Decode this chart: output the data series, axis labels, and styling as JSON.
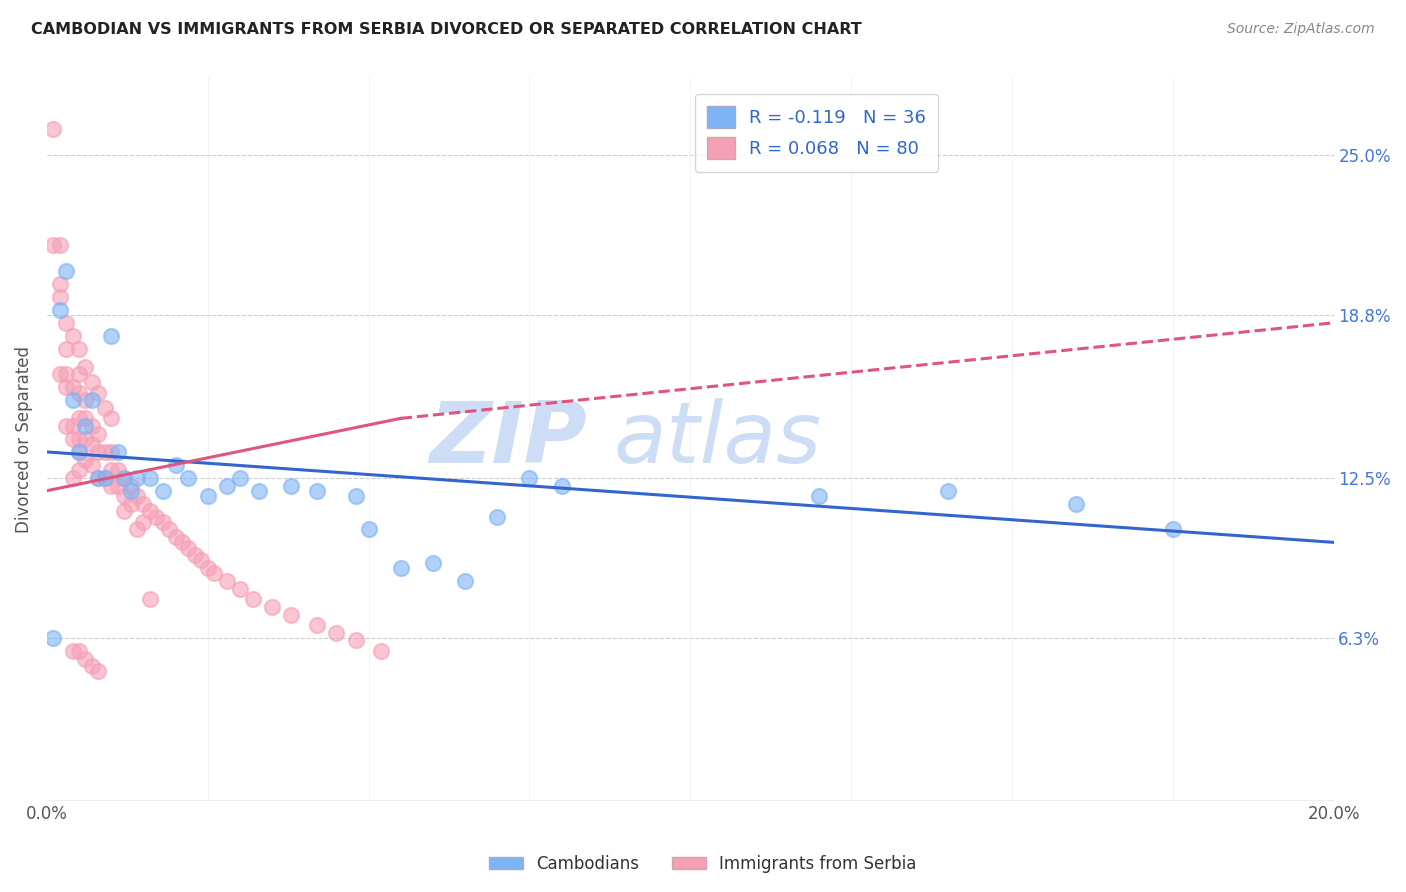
{
  "title": "CAMBODIAN VS IMMIGRANTS FROM SERBIA DIVORCED OR SEPARATED CORRELATION CHART",
  "source": "Source: ZipAtlas.com",
  "ylabel_label": "Divorced or Separated",
  "xlim": [
    0.0,
    0.2
  ],
  "ylim": [
    0.0,
    0.28
  ],
  "ytick_positions": [
    0.063,
    0.125,
    0.188,
    0.25
  ],
  "ytick_labels": [
    "6.3%",
    "12.5%",
    "18.8%",
    "25.0%"
  ],
  "xtick_positions": [
    0.0,
    0.2
  ],
  "xtick_labels": [
    "0.0%",
    "20.0%"
  ],
  "cambodian_color": "#7eb3f5",
  "serbia_color": "#f5a0b5",
  "trend_cambodian_color": "#3366cc",
  "trend_serbia_color": "#e05580",
  "watermark_color": "#ccddf5",
  "R_cambodian": -0.119,
  "N_cambodian": 36,
  "R_serbia": 0.068,
  "N_serbia": 80,
  "cambodian_x": [
    0.001,
    0.002,
    0.003,
    0.004,
    0.005,
    0.006,
    0.007,
    0.008,
    0.009,
    0.01,
    0.011,
    0.012,
    0.013,
    0.014,
    0.016,
    0.018,
    0.02,
    0.022,
    0.025,
    0.028,
    0.03,
    0.033,
    0.038,
    0.042,
    0.048,
    0.05,
    0.055,
    0.06,
    0.065,
    0.07,
    0.075,
    0.08,
    0.12,
    0.14,
    0.16,
    0.175
  ],
  "cambodian_y": [
    0.063,
    0.19,
    0.205,
    0.155,
    0.135,
    0.145,
    0.155,
    0.125,
    0.125,
    0.18,
    0.135,
    0.125,
    0.12,
    0.125,
    0.125,
    0.12,
    0.13,
    0.125,
    0.118,
    0.122,
    0.125,
    0.12,
    0.122,
    0.12,
    0.118,
    0.105,
    0.09,
    0.092,
    0.085,
    0.11,
    0.125,
    0.122,
    0.118,
    0.12,
    0.115,
    0.105
  ],
  "serbia_x": [
    0.001,
    0.001,
    0.002,
    0.002,
    0.002,
    0.003,
    0.003,
    0.003,
    0.003,
    0.004,
    0.004,
    0.004,
    0.004,
    0.005,
    0.005,
    0.005,
    0.005,
    0.005,
    0.005,
    0.006,
    0.006,
    0.006,
    0.006,
    0.007,
    0.007,
    0.007,
    0.008,
    0.008,
    0.008,
    0.009,
    0.009,
    0.01,
    0.01,
    0.01,
    0.011,
    0.011,
    0.012,
    0.012,
    0.013,
    0.013,
    0.014,
    0.015,
    0.015,
    0.016,
    0.017,
    0.018,
    0.019,
    0.02,
    0.021,
    0.022,
    0.023,
    0.024,
    0.025,
    0.026,
    0.028,
    0.03,
    0.032,
    0.035,
    0.038,
    0.042,
    0.045,
    0.048,
    0.052,
    0.002,
    0.003,
    0.004,
    0.005,
    0.006,
    0.007,
    0.008,
    0.009,
    0.01,
    0.012,
    0.014,
    0.016,
    0.004,
    0.005,
    0.006,
    0.007,
    0.008
  ],
  "serbia_y": [
    0.26,
    0.215,
    0.215,
    0.195,
    0.165,
    0.175,
    0.165,
    0.16,
    0.145,
    0.16,
    0.145,
    0.14,
    0.125,
    0.165,
    0.158,
    0.148,
    0.14,
    0.135,
    0.128,
    0.155,
    0.148,
    0.14,
    0.132,
    0.145,
    0.138,
    0.13,
    0.142,
    0.135,
    0.125,
    0.135,
    0.125,
    0.135,
    0.128,
    0.122,
    0.128,
    0.122,
    0.125,
    0.118,
    0.122,
    0.115,
    0.118,
    0.115,
    0.108,
    0.112,
    0.11,
    0.108,
    0.105,
    0.102,
    0.1,
    0.098,
    0.095,
    0.093,
    0.09,
    0.088,
    0.085,
    0.082,
    0.078,
    0.075,
    0.072,
    0.068,
    0.065,
    0.062,
    0.058,
    0.2,
    0.185,
    0.18,
    0.175,
    0.168,
    0.162,
    0.158,
    0.152,
    0.148,
    0.112,
    0.105,
    0.078,
    0.058,
    0.058,
    0.055,
    0.052,
    0.05
  ],
  "trend_cambodian_x0": 0.0,
  "trend_cambodian_x1": 0.2,
  "trend_cambodian_y0": 0.135,
  "trend_cambodian_y1": 0.1,
  "trend_serbia_solid_x0": 0.0,
  "trend_serbia_solid_x1": 0.055,
  "trend_serbia_solid_y0": 0.12,
  "trend_serbia_solid_y1": 0.148,
  "trend_serbia_dash_x0": 0.055,
  "trend_serbia_dash_x1": 0.2,
  "trend_serbia_dash_y0": 0.148,
  "trend_serbia_dash_y1": 0.185
}
